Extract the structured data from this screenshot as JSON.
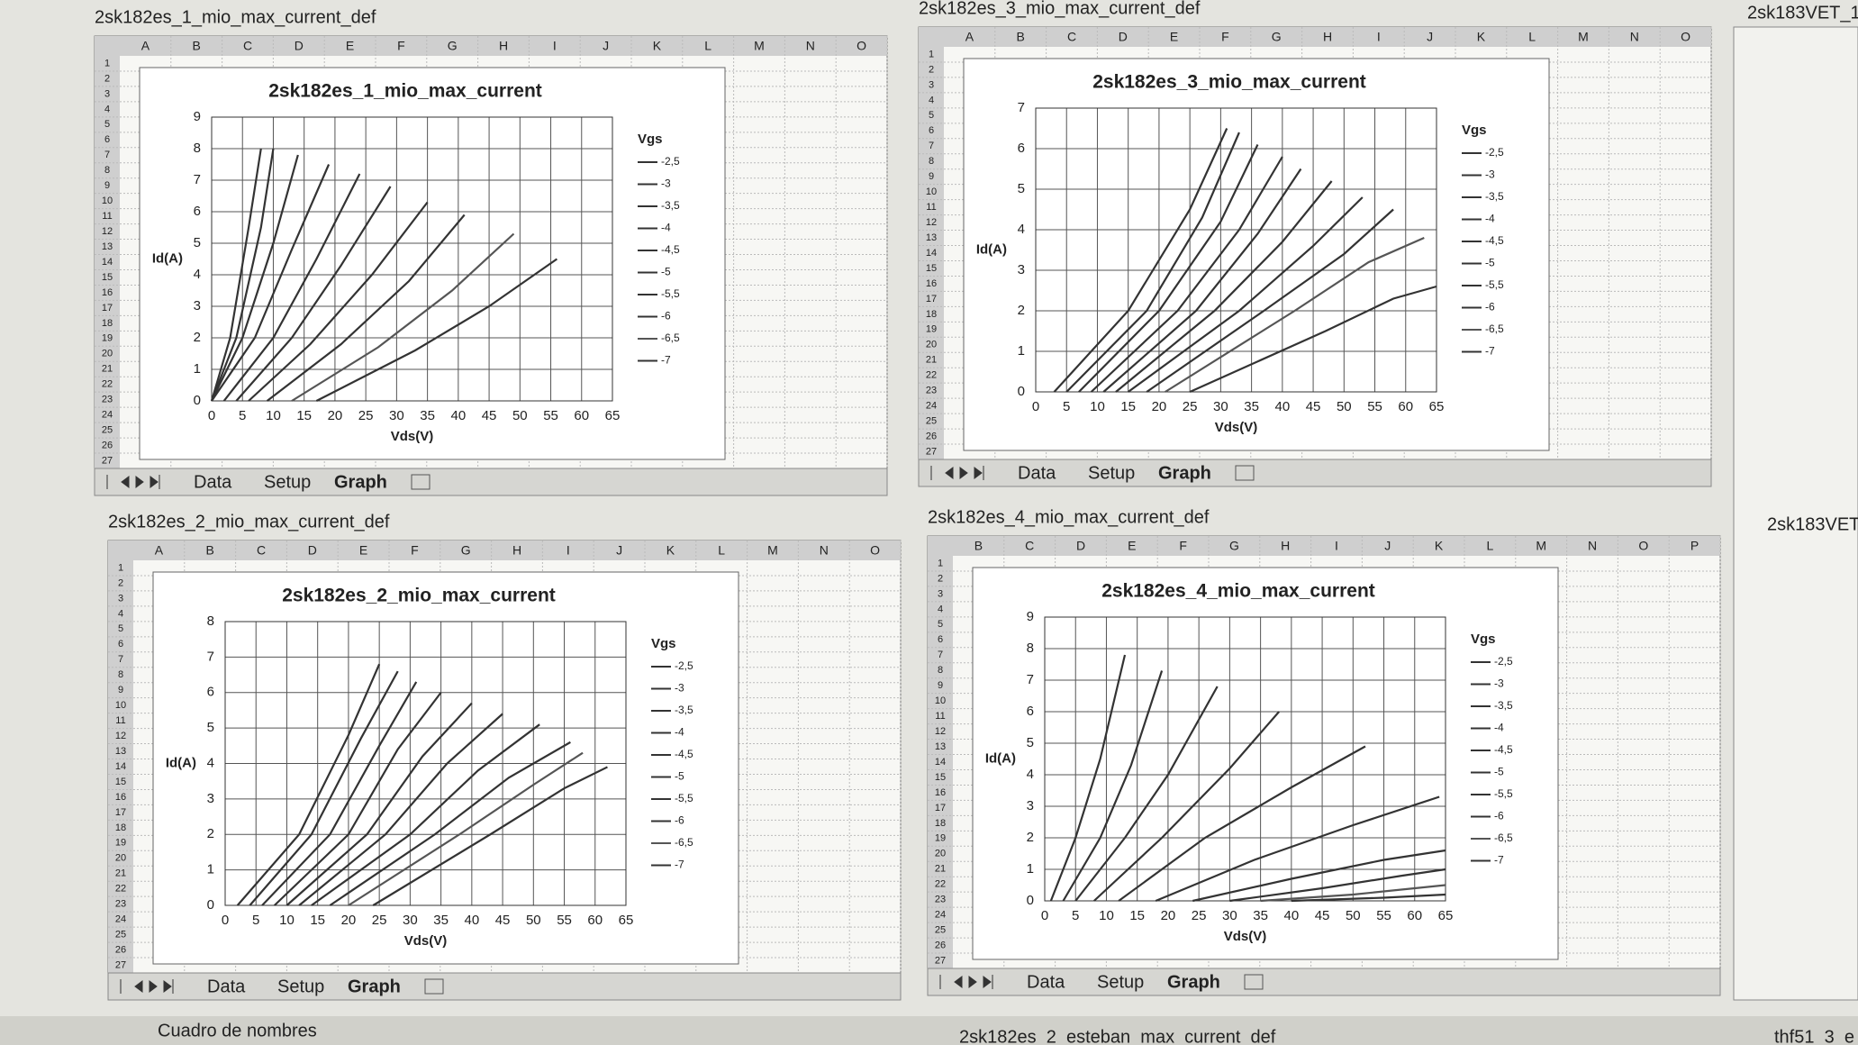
{
  "rows": [
    1,
    2,
    3,
    4,
    5,
    6,
    7,
    8,
    9,
    10,
    11,
    12,
    13,
    14,
    15,
    16,
    17,
    18,
    19,
    20,
    21,
    22,
    23,
    24,
    25,
    26,
    27
  ],
  "windows": [
    {
      "title": "2sk182es_1_mio_max_current_def",
      "columns": [
        "A",
        "B",
        "C",
        "D",
        "E",
        "F",
        "G",
        "H",
        "I",
        "J",
        "K",
        "L",
        "M",
        "N",
        "O"
      ],
      "tabs": [
        "Data",
        "Setup",
        "Graph"
      ]
    },
    {
      "title": "2sk182es_3_mio_max_current_def",
      "columns": [
        "A",
        "B",
        "C",
        "D",
        "E",
        "F",
        "G",
        "H",
        "I",
        "J",
        "K",
        "L",
        "M",
        "N",
        "O"
      ],
      "tabs": [
        "Data",
        "Setup",
        "Graph"
      ]
    },
    {
      "title": "2sk182es_2_mio_max_current_def",
      "columns": [
        "A",
        "B",
        "C",
        "D",
        "E",
        "F",
        "G",
        "H",
        "I",
        "J",
        "K",
        "L",
        "M",
        "N",
        "O"
      ],
      "tabs": [
        "Data",
        "Setup",
        "Graph"
      ]
    },
    {
      "title": "2sk182es_4_mio_max_current_def",
      "columns": [
        "B",
        "C",
        "D",
        "E",
        "F",
        "G",
        "H",
        "I",
        "J",
        "K",
        "L",
        "M",
        "N",
        "O",
        "P"
      ],
      "tabs": [
        "Data",
        "Setup",
        "Graph"
      ]
    }
  ],
  "side_windows": [
    "2sk183VET_1",
    "2sk183VET"
  ],
  "status_bar": {
    "name_box": "Cuadro de nombres",
    "windows": [
      "2sk182es_2_esteban_max_current_def",
      "thf51_3_e"
    ]
  },
  "chart_data": [
    {
      "type": "line",
      "title": "2sk182es_1_mio_max_current",
      "x_label": "Vds(V)",
      "y_label": "Id(A)",
      "legend_title": "Vgs",
      "xlim": [
        0,
        65
      ],
      "ylim": [
        0,
        9
      ],
      "xticks": [
        0,
        5,
        10,
        15,
        20,
        25,
        30,
        35,
        40,
        45,
        50,
        55,
        60,
        65
      ],
      "yticks": [
        0,
        1,
        2,
        3,
        4,
        5,
        6,
        7,
        8,
        9
      ],
      "grid": true,
      "legend": "right",
      "series": [
        {
          "name": "-2,5",
          "color": "#333",
          "x": [
            0,
            3,
            6,
            8
          ],
          "values": [
            0,
            2,
            5.5,
            8
          ]
        },
        {
          "name": "-3",
          "color": "#333",
          "x": [
            0,
            4,
            8,
            10
          ],
          "values": [
            0,
            2,
            5.5,
            8
          ]
        },
        {
          "name": "-3,5",
          "color": "#333",
          "x": [
            0,
            5,
            10,
            14
          ],
          "values": [
            0,
            2,
            5,
            7.8
          ]
        },
        {
          "name": "-4",
          "color": "#333",
          "x": [
            0,
            7,
            13,
            19
          ],
          "values": [
            0,
            2,
            4.8,
            7.5
          ]
        },
        {
          "name": "-4,5",
          "color": "#333",
          "x": [
            2,
            10,
            17,
            24
          ],
          "values": [
            0,
            2,
            4.5,
            7.2
          ]
        },
        {
          "name": "-5",
          "color": "#333",
          "x": [
            4,
            13,
            21,
            29
          ],
          "values": [
            0,
            2,
            4.3,
            6.8
          ]
        },
        {
          "name": "-5,5",
          "color": "#333",
          "x": [
            6,
            16,
            26,
            35
          ],
          "values": [
            0,
            1.8,
            4,
            6.3
          ]
        },
        {
          "name": "-6",
          "color": "#333",
          "x": [
            9,
            21,
            32,
            41
          ],
          "values": [
            0,
            1.8,
            3.8,
            5.9
          ]
        },
        {
          "name": "-6,5",
          "color": "#555",
          "x": [
            13,
            27,
            39,
            49
          ],
          "values": [
            0,
            1.7,
            3.5,
            5.3
          ]
        },
        {
          "name": "-7",
          "color": "#333",
          "x": [
            17,
            33,
            45,
            56
          ],
          "values": [
            0,
            1.6,
            3,
            4.5
          ]
        }
      ]
    },
    {
      "type": "line",
      "title": "2sk182es_3_mio_max_current",
      "x_label": "Vds(V)",
      "y_label": "Id(A)",
      "legend_title": "Vgs",
      "xlim": [
        0,
        65
      ],
      "ylim": [
        0,
        7
      ],
      "xticks": [
        0,
        5,
        10,
        15,
        20,
        25,
        30,
        35,
        40,
        45,
        50,
        55,
        60,
        65
      ],
      "yticks": [
        0,
        1,
        2,
        3,
        4,
        5,
        6,
        7
      ],
      "grid": true,
      "legend": "right",
      "series": [
        {
          "name": "-2,5",
          "color": "#333",
          "x": [
            3,
            15,
            25,
            31
          ],
          "values": [
            0,
            2,
            4.5,
            6.5
          ]
        },
        {
          "name": "-3",
          "color": "#333",
          "x": [
            5,
            18,
            27,
            33
          ],
          "values": [
            0,
            2,
            4.3,
            6.4
          ]
        },
        {
          "name": "-3,5",
          "color": "#333",
          "x": [
            7,
            20,
            30,
            36
          ],
          "values": [
            0,
            2,
            4.2,
            6.1
          ]
        },
        {
          "name": "-4",
          "color": "#333",
          "x": [
            9,
            23,
            33,
            40
          ],
          "values": [
            0,
            2,
            4,
            5.8
          ]
        },
        {
          "name": "-4,5",
          "color": "#333",
          "x": [
            11,
            26,
            36,
            43
          ],
          "values": [
            0,
            2,
            3.9,
            5.5
          ]
        },
        {
          "name": "-5",
          "color": "#333",
          "x": [
            13,
            29,
            40,
            48
          ],
          "values": [
            0,
            2,
            3.7,
            5.2
          ]
        },
        {
          "name": "-5,5",
          "color": "#333",
          "x": [
            15,
            33,
            45,
            53
          ],
          "values": [
            0,
            2,
            3.6,
            4.8
          ]
        },
        {
          "name": "-6",
          "color": "#333",
          "x": [
            18,
            37,
            50,
            58
          ],
          "values": [
            0,
            2,
            3.4,
            4.5
          ]
        },
        {
          "name": "-6,5",
          "color": "#555",
          "x": [
            21,
            42,
            54,
            63
          ],
          "values": [
            0,
            2,
            3.2,
            3.8
          ]
        },
        {
          "name": "-7",
          "color": "#333",
          "x": [
            25,
            47,
            58,
            65
          ],
          "values": [
            0,
            1.5,
            2.3,
            2.6
          ]
        }
      ]
    },
    {
      "type": "line",
      "title": "2sk182es_2_mio_max_current",
      "x_label": "Vds(V)",
      "y_label": "Id(A)",
      "legend_title": "Vgs",
      "xlim": [
        0,
        65
      ],
      "ylim": [
        0,
        8
      ],
      "xticks": [
        0,
        5,
        10,
        15,
        20,
        25,
        30,
        35,
        40,
        45,
        50,
        55,
        60,
        65
      ],
      "yticks": [
        0,
        1,
        2,
        3,
        4,
        5,
        6,
        7,
        8
      ],
      "grid": true,
      "legend": "right",
      "series": [
        {
          "name": "-2,5",
          "color": "#333",
          "x": [
            2,
            12,
            20,
            25
          ],
          "values": [
            0,
            2,
            4.8,
            6.8
          ]
        },
        {
          "name": "-3",
          "color": "#333",
          "x": [
            4,
            14,
            22,
            28
          ],
          "values": [
            0,
            2,
            4.7,
            6.6
          ]
        },
        {
          "name": "-3,5",
          "color": "#333",
          "x": [
            6,
            17,
            25,
            31
          ],
          "values": [
            0,
            2,
            4.5,
            6.3
          ]
        },
        {
          "name": "-4",
          "color": "#333",
          "x": [
            8,
            20,
            28,
            35
          ],
          "values": [
            0,
            2,
            4.4,
            6
          ]
        },
        {
          "name": "-4,5",
          "color": "#333",
          "x": [
            10,
            23,
            32,
            40
          ],
          "values": [
            0,
            2,
            4.2,
            5.7
          ]
        },
        {
          "name": "-5",
          "color": "#333",
          "x": [
            12,
            26,
            36,
            45
          ],
          "values": [
            0,
            2,
            4,
            5.4
          ]
        },
        {
          "name": "-5,5",
          "color": "#333",
          "x": [
            14,
            30,
            41,
            51
          ],
          "values": [
            0,
            2,
            3.8,
            5.1
          ]
        },
        {
          "name": "-6",
          "color": "#333",
          "x": [
            17,
            34,
            46,
            56
          ],
          "values": [
            0,
            2,
            3.6,
            4.6
          ]
        },
        {
          "name": "-6,5",
          "color": "#555",
          "x": [
            20,
            38,
            50,
            58
          ],
          "values": [
            0,
            2,
            3.4,
            4.3
          ]
        },
        {
          "name": "-7",
          "color": "#333",
          "x": [
            24,
            43,
            55,
            62
          ],
          "values": [
            0,
            2,
            3.3,
            3.9
          ]
        }
      ]
    },
    {
      "type": "line",
      "title": "2sk182es_4_mio_max_current",
      "x_label": "Vds(V)",
      "y_label": "Id(A)",
      "legend_title": "Vgs",
      "xlim": [
        0,
        65
      ],
      "ylim": [
        0,
        9
      ],
      "xticks": [
        0,
        5,
        10,
        15,
        20,
        25,
        30,
        35,
        40,
        45,
        50,
        55,
        60,
        65
      ],
      "yticks": [
        0,
        1,
        2,
        3,
        4,
        5,
        6,
        7,
        8,
        9
      ],
      "grid": true,
      "legend": "right",
      "series": [
        {
          "name": "-2,5",
          "color": "#333",
          "x": [
            1,
            5,
            9,
            13
          ],
          "values": [
            0,
            2,
            4.5,
            7.8
          ]
        },
        {
          "name": "-3",
          "color": "#333",
          "x": [
            3,
            9,
            14,
            19
          ],
          "values": [
            0,
            2,
            4.3,
            7.3
          ]
        },
        {
          "name": "-3,5",
          "color": "#333",
          "x": [
            5,
            13,
            20,
            28
          ],
          "values": [
            0,
            2,
            4,
            6.8
          ]
        },
        {
          "name": "-4",
          "color": "#333",
          "x": [
            8,
            19,
            30,
            38
          ],
          "values": [
            0,
            2,
            4.2,
            6
          ]
        },
        {
          "name": "-4,5",
          "color": "#333",
          "x": [
            12,
            26,
            40,
            52
          ],
          "values": [
            0,
            2,
            3.6,
            4.9
          ]
        },
        {
          "name": "-5",
          "color": "#333",
          "x": [
            18,
            34,
            50,
            64
          ],
          "values": [
            0,
            1.3,
            2.4,
            3.3
          ]
        },
        {
          "name": "-5,5",
          "color": "#333",
          "x": [
            24,
            40,
            55,
            65
          ],
          "values": [
            0,
            0.7,
            1.3,
            1.6
          ]
        },
        {
          "name": "-6",
          "color": "#333",
          "x": [
            30,
            45,
            58,
            65
          ],
          "values": [
            0,
            0.4,
            0.8,
            1
          ]
        },
        {
          "name": "-6,5",
          "color": "#555",
          "x": [
            35,
            50,
            60,
            65
          ],
          "values": [
            0,
            0.2,
            0.4,
            0.5
          ]
        },
        {
          "name": "-7",
          "color": "#333",
          "x": [
            40,
            55,
            65
          ],
          "values": [
            0,
            0.1,
            0.2
          ]
        }
      ]
    }
  ]
}
